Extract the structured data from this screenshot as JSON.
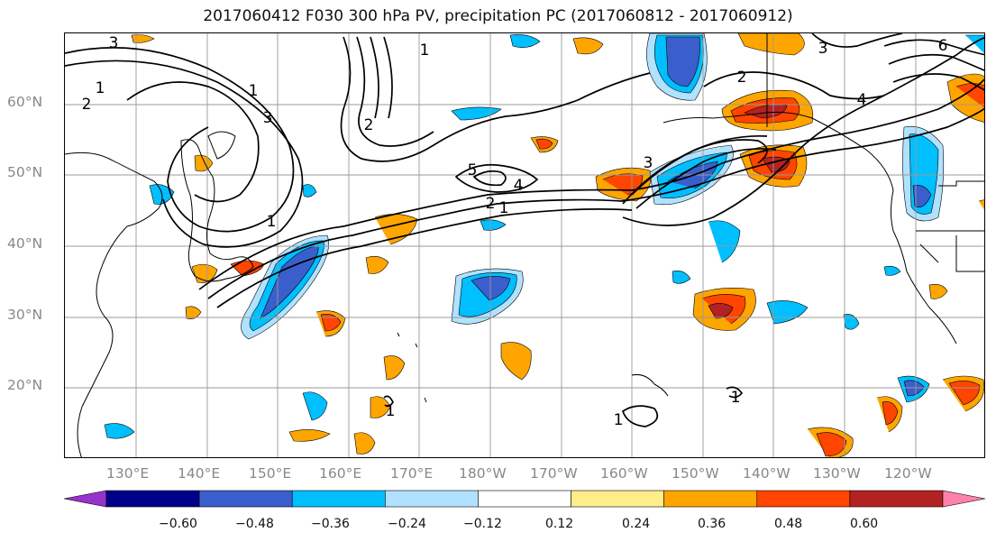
{
  "title": "2017060412 F030 300 hPa PV, precipitation PC (2017060812 - 2017060912)",
  "axes": {
    "lat_labels": [
      "60°N",
      "50°N",
      "40°N",
      "30°N",
      "20°N"
    ],
    "lon_labels": [
      "130°E",
      "140°E",
      "150°E",
      "160°E",
      "170°E",
      "180°W",
      "170°W",
      "160°W",
      "150°W",
      "140°W",
      "130°W",
      "120°W"
    ]
  },
  "contour_labels": [
    "3",
    "1",
    "2",
    "3",
    "1",
    "2",
    "5",
    "4",
    "2",
    "1",
    "3",
    "1",
    "1",
    "1",
    "2",
    "3",
    "6",
    "4",
    "1",
    "1"
  ],
  "colorbar": {
    "tick_labels": [
      "−0.60",
      "−0.48",
      "−0.36",
      "−0.24",
      "−0.12",
      "0.12",
      "0.24",
      "0.36",
      "0.48",
      "0.60"
    ],
    "colors": [
      "#9932cc",
      "#00008b",
      "#3a5fcd",
      "#00bfff",
      "#b0e2ff",
      "#ffffff",
      "#ffec8b",
      "#ffa500",
      "#ff4500",
      "#b22222",
      "#ff82ab"
    ]
  }
}
